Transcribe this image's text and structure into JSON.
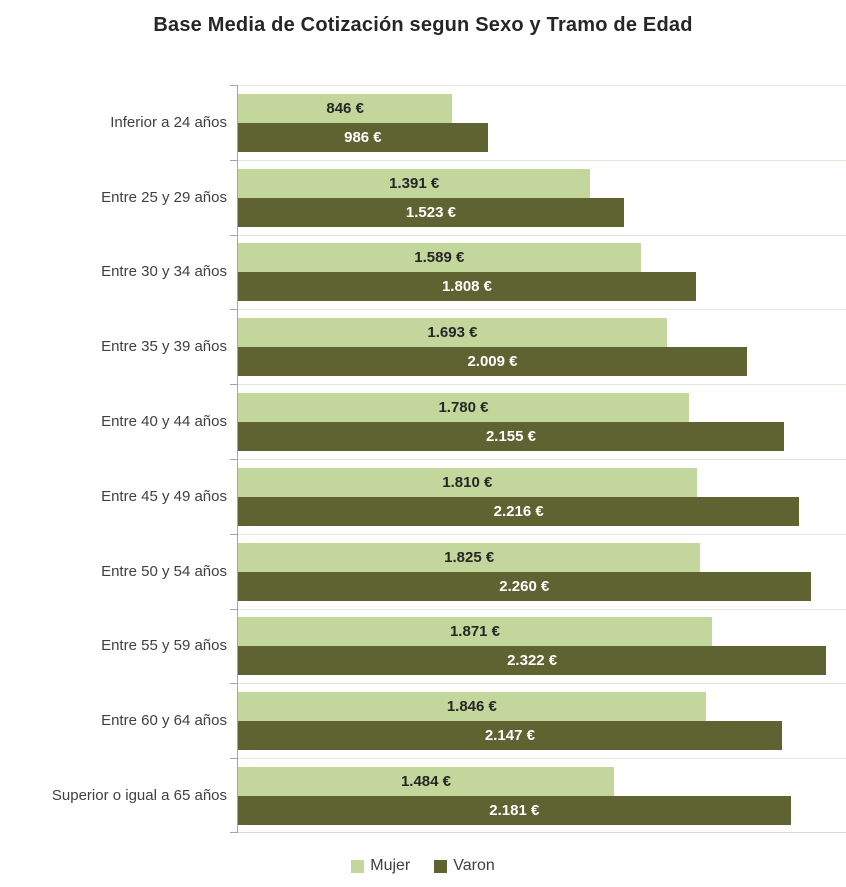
{
  "title": "Base Media de Cotización segun Sexo y Tramo de Edad",
  "colors": {
    "mujer": "#c3d69b",
    "varon": "#5f6331",
    "mujer_label_text": "#262626",
    "varon_label_text": "#ffffff",
    "gridline": "#e9e5da",
    "axis": "#a6a6a6",
    "title_text": "#262626",
    "category_text": "#3f3f3f"
  },
  "legend": [
    {
      "label": "Mujer",
      "swatch": "mujer"
    },
    {
      "label": "Varon",
      "swatch": "varon"
    }
  ],
  "chart_data": {
    "type": "bar",
    "orientation": "horizontal",
    "title": "Base Media de Cotización segun Sexo y Tramo de Edad",
    "xlabel": "",
    "ylabel": "",
    "xlim": [
      0,
      2400
    ],
    "grid": true,
    "legend_position": "bottom",
    "categories": [
      "Inferior a 24 años",
      "Entre 25 y 29 años",
      "Entre 30 y 34 años",
      "Entre 35 y 39 años",
      "Entre 40 y 44 años",
      "Entre 45 y 49 años",
      "Entre 50 y 54 años",
      "Entre 55 y 59 años",
      "Entre 60 y 64 años",
      "Superior o igual a 65 años"
    ],
    "series": [
      {
        "name": "Mujer",
        "color": "#c3d69b",
        "values": [
          846,
          1391,
          1589,
          1693,
          1780,
          1810,
          1825,
          1871,
          1846,
          1484
        ],
        "labels": [
          "846 €",
          "1.391 €",
          "1.589 €",
          "1.693 €",
          "1.780 €",
          "1.810 €",
          "1.825 €",
          "1.871 €",
          "1.846 €",
          "1.484 €"
        ]
      },
      {
        "name": "Varon",
        "color": "#5f6331",
        "values": [
          986,
          1523,
          1808,
          2009,
          2155,
          2216,
          2260,
          2322,
          2147,
          2181
        ],
        "labels": [
          "986 €",
          "1.523 €",
          "1.808 €",
          "2.009 €",
          "2.155 €",
          "2.216 €",
          "2.260 €",
          "2.322 €",
          "2.147 €",
          "2.181 €"
        ]
      }
    ]
  }
}
